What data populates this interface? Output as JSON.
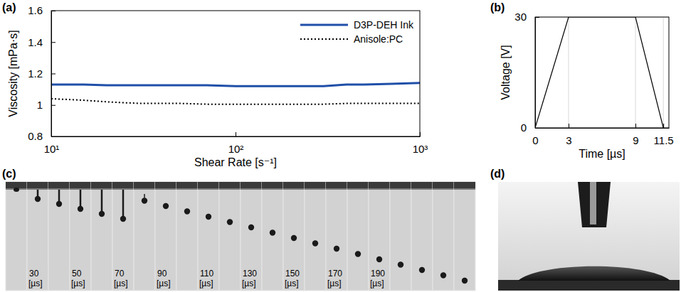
{
  "chart_data": [
    {
      "panel_label": "(a)",
      "type": "line",
      "x_label": "Shear Rate [s⁻¹]",
      "y_label": "Viscosity [mPa·s]",
      "log": "x",
      "grid": false,
      "legend": "upper right",
      "xlim": [
        10,
        1000
      ],
      "xticks": [
        {
          "value": 10,
          "label": "10¹"
        },
        {
          "value": 100,
          "label": "10²"
        },
        {
          "value": 1000,
          "label": "10³"
        }
      ],
      "ylim": [
        0.8,
        1.6
      ],
      "yticks": [
        0.8,
        1,
        1.2,
        1.4,
        1.6
      ],
      "x": [
        10,
        15,
        20,
        30,
        50,
        70,
        100,
        150,
        200,
        300,
        400,
        500,
        700,
        1000
      ],
      "series": [
        {
          "name": "D3P-DEH Ink",
          "color": "#1f4fa8",
          "line_style": "solid",
          "values": [
            1.13,
            1.13,
            1.125,
            1.125,
            1.125,
            1.125,
            1.12,
            1.12,
            1.12,
            1.12,
            1.13,
            1.13,
            1.135,
            1.14
          ]
        },
        {
          "name": "Anisole:PC",
          "color": "#000000",
          "line_style": "dotted",
          "values": [
            1.04,
            1.03,
            1.02,
            1.01,
            1.01,
            1.005,
            1.005,
            1.005,
            1.005,
            1.005,
            1.01,
            1.01,
            1.01,
            1.01
          ]
        }
      ]
    },
    {
      "panel_label": "(b)",
      "type": "line",
      "x_label": "Time [µs]",
      "y_label": "Voltage [V]",
      "grid": true,
      "xlim": [
        0,
        12
      ],
      "xticks": [
        0,
        3,
        9,
        11.5
      ],
      "ylim": [
        0,
        30
      ],
      "yticks": [
        0,
        30
      ],
      "x": [
        0,
        3,
        9,
        11.5
      ],
      "series": [
        {
          "color": "#000000",
          "line_style": "solid",
          "values": [
            0,
            30,
            30,
            0
          ]
        }
      ]
    }
  ],
  "image_strip": {
    "panel_label": "(c)",
    "unit": "[µs]",
    "frame_labels": [
      null,
      "30",
      null,
      "50",
      null,
      "70",
      null,
      "90",
      null,
      "110",
      null,
      "130",
      null,
      "150",
      null,
      "170",
      null,
      "190",
      null,
      null,
      null,
      null
    ]
  },
  "photo": {
    "panel_label": "(d)"
  }
}
